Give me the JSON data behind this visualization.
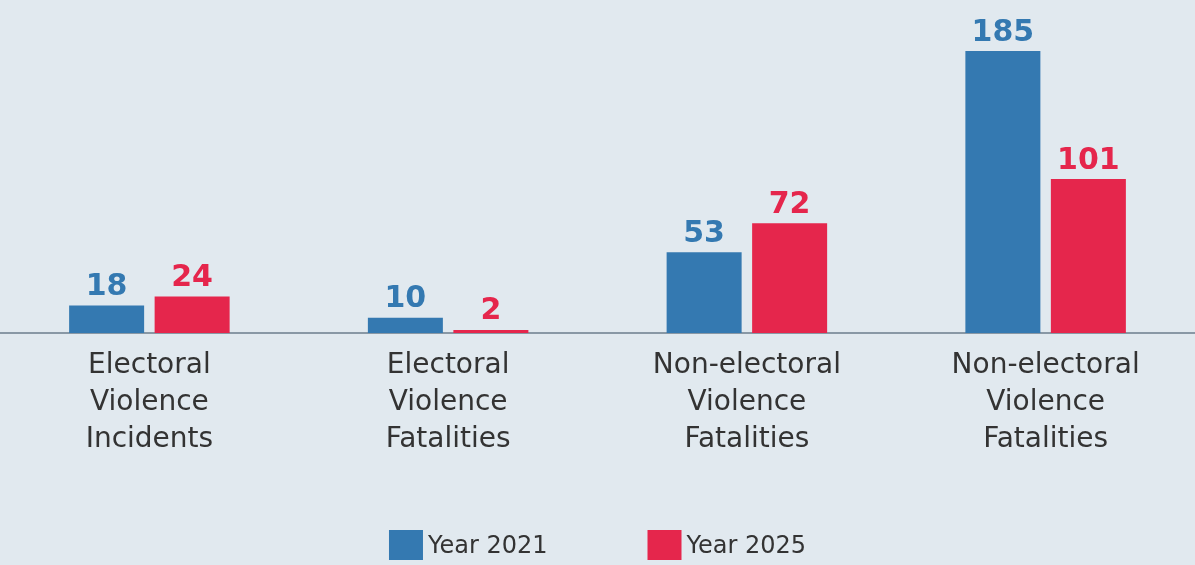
{
  "chart_data": {
    "type": "bar",
    "categories": [
      "Electoral Violence Incidents",
      "Electoral Violence Fatalities",
      "Non-electoral Violence Fatalities",
      "Non-electoral Violence Fatalities"
    ],
    "series": [
      {
        "name": "Year 2021",
        "color": "#3479b1",
        "values": [
          18,
          10,
          53,
          185
        ]
      },
      {
        "name": "Year 2025",
        "color": "#e5264c",
        "values": [
          24,
          2,
          72,
          101
        ]
      }
    ],
    "data_labels": true,
    "legend": "bottom",
    "grid": false
  }
}
